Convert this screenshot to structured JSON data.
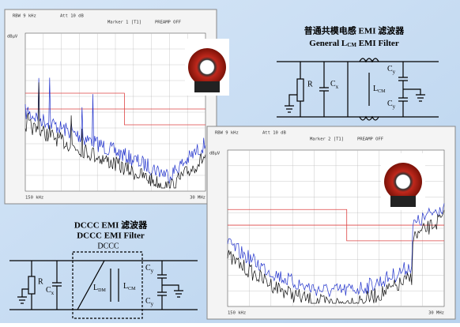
{
  "panel_1": {
    "header": [
      "RBW 9 kHz",
      "Marker 1 [T1]",
      "Att 10 dB",
      "PREAMP OFF"
    ],
    "unit": "dBµV",
    "x_start": "150 kHz",
    "x_end": "30 MHz"
  },
  "panel_2": {
    "header": [
      "RBW 9 kHz",
      "Marker 2 [T1]",
      "Att 10 dB",
      "PREAMP OFF"
    ],
    "unit": "dBµV",
    "x_start": "150 kHz",
    "x_end": "30 MHz"
  },
  "circuit_1": {
    "title_cn": "普通共模电感 EMI 滤波器",
    "title_en": {
      "prefix": "General L",
      "sub": "CM",
      "suffix": " EMI Filter"
    },
    "labels": {
      "r": "R",
      "cx": "C",
      "cx_sub": "x",
      "lcm": "L",
      "lcm_sub": "CM",
      "cy_top": "C",
      "cy_top_sub": "y",
      "cy_bot": "C",
      "cy_bot_sub": "y"
    }
  },
  "circuit_2": {
    "title_cn": "DCCC EMI 滤波器",
    "title_en": "DCCC EMI Filter",
    "box_label": "DCCC",
    "labels": {
      "r": "R",
      "cx": "C",
      "cx_sub": "x",
      "ldm": "L",
      "ldm_sub": "DM",
      "lcm": "L",
      "lcm_sub": "CM",
      "cy_top": "C",
      "cy_top_sub": "y",
      "cy_bot": "C",
      "cy_bot_sub": "y"
    }
  }
}
